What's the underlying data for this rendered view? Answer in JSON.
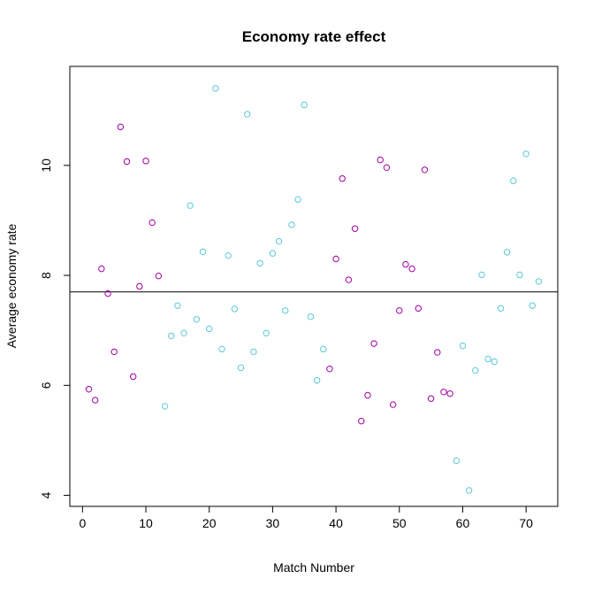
{
  "chart_data": {
    "type": "scatter",
    "title": "Economy rate effect",
    "xlabel": "Match Number",
    "ylabel": "Average economy rate",
    "xlim": [
      -2,
      75
    ],
    "ylim": [
      3.8,
      11.8
    ],
    "xticks": [
      0,
      10,
      20,
      30,
      40,
      50,
      60,
      70
    ],
    "yticks": [
      4,
      6,
      8,
      10
    ],
    "reference_line_y": 7.7,
    "grid": false,
    "legend": "none",
    "colors": {
      "magenta": "#a000a0",
      "cyan": "#5bc8d8",
      "line": "#000000"
    },
    "points": [
      {
        "x": 1,
        "y": 5.93,
        "c": "magenta"
      },
      {
        "x": 2,
        "y": 5.73,
        "c": "magenta"
      },
      {
        "x": 3,
        "y": 8.12,
        "c": "magenta"
      },
      {
        "x": 4,
        "y": 7.67,
        "c": "magenta"
      },
      {
        "x": 5,
        "y": 6.61,
        "c": "magenta"
      },
      {
        "x": 6,
        "y": 10.7,
        "c": "magenta"
      },
      {
        "x": 7,
        "y": 10.07,
        "c": "magenta"
      },
      {
        "x": 8,
        "y": 6.16,
        "c": "magenta"
      },
      {
        "x": 9,
        "y": 7.8,
        "c": "magenta"
      },
      {
        "x": 10,
        "y": 10.08,
        "c": "magenta"
      },
      {
        "x": 11,
        "y": 8.96,
        "c": "magenta"
      },
      {
        "x": 12,
        "y": 7.99,
        "c": "magenta"
      },
      {
        "x": 13,
        "y": 5.62,
        "c": "cyan"
      },
      {
        "x": 14,
        "y": 6.9,
        "c": "cyan"
      },
      {
        "x": 15,
        "y": 7.45,
        "c": "cyan"
      },
      {
        "x": 16,
        "y": 6.95,
        "c": "cyan"
      },
      {
        "x": 17,
        "y": 9.27,
        "c": "cyan"
      },
      {
        "x": 18,
        "y": 7.2,
        "c": "cyan"
      },
      {
        "x": 19,
        "y": 8.43,
        "c": "cyan"
      },
      {
        "x": 20,
        "y": 7.03,
        "c": "cyan"
      },
      {
        "x": 21,
        "y": 11.4,
        "c": "cyan"
      },
      {
        "x": 22,
        "y": 6.66,
        "c": "cyan"
      },
      {
        "x": 23,
        "y": 8.36,
        "c": "cyan"
      },
      {
        "x": 24,
        "y": 7.39,
        "c": "cyan"
      },
      {
        "x": 25,
        "y": 6.32,
        "c": "cyan"
      },
      {
        "x": 26,
        "y": 10.93,
        "c": "cyan"
      },
      {
        "x": 27,
        "y": 6.61,
        "c": "cyan"
      },
      {
        "x": 28,
        "y": 8.22,
        "c": "cyan"
      },
      {
        "x": 29,
        "y": 6.95,
        "c": "cyan"
      },
      {
        "x": 30,
        "y": 8.4,
        "c": "cyan"
      },
      {
        "x": 31,
        "y": 8.62,
        "c": "cyan"
      },
      {
        "x": 32,
        "y": 7.36,
        "c": "cyan"
      },
      {
        "x": 33,
        "y": 8.92,
        "c": "cyan"
      },
      {
        "x": 34,
        "y": 9.38,
        "c": "cyan"
      },
      {
        "x": 35,
        "y": 11.1,
        "c": "cyan"
      },
      {
        "x": 36,
        "y": 7.25,
        "c": "cyan"
      },
      {
        "x": 37,
        "y": 6.09,
        "c": "cyan"
      },
      {
        "x": 38,
        "y": 6.66,
        "c": "cyan"
      },
      {
        "x": 39,
        "y": 6.3,
        "c": "magenta"
      },
      {
        "x": 40,
        "y": 8.3,
        "c": "magenta"
      },
      {
        "x": 41,
        "y": 9.76,
        "c": "magenta"
      },
      {
        "x": 42,
        "y": 7.92,
        "c": "magenta"
      },
      {
        "x": 43,
        "y": 8.85,
        "c": "magenta"
      },
      {
        "x": 44,
        "y": 5.35,
        "c": "magenta"
      },
      {
        "x": 45,
        "y": 5.82,
        "c": "magenta"
      },
      {
        "x": 46,
        "y": 6.76,
        "c": "magenta"
      },
      {
        "x": 47,
        "y": 10.1,
        "c": "magenta"
      },
      {
        "x": 48,
        "y": 9.96,
        "c": "magenta"
      },
      {
        "x": 49,
        "y": 5.65,
        "c": "magenta"
      },
      {
        "x": 50,
        "y": 7.36,
        "c": "magenta"
      },
      {
        "x": 51,
        "y": 8.2,
        "c": "magenta"
      },
      {
        "x": 52,
        "y": 8.12,
        "c": "magenta"
      },
      {
        "x": 53,
        "y": 7.4,
        "c": "magenta"
      },
      {
        "x": 54,
        "y": 9.92,
        "c": "magenta"
      },
      {
        "x": 55,
        "y": 5.76,
        "c": "magenta"
      },
      {
        "x": 56,
        "y": 6.6,
        "c": "magenta"
      },
      {
        "x": 57,
        "y": 5.88,
        "c": "magenta"
      },
      {
        "x": 58,
        "y": 5.85,
        "c": "magenta"
      },
      {
        "x": 59,
        "y": 4.63,
        "c": "cyan"
      },
      {
        "x": 60,
        "y": 6.72,
        "c": "cyan"
      },
      {
        "x": 61,
        "y": 4.09,
        "c": "cyan"
      },
      {
        "x": 62,
        "y": 6.27,
        "c": "cyan"
      },
      {
        "x": 63,
        "y": 8.01,
        "c": "cyan"
      },
      {
        "x": 64,
        "y": 6.48,
        "c": "cyan"
      },
      {
        "x": 65,
        "y": 6.43,
        "c": "cyan"
      },
      {
        "x": 66,
        "y": 7.4,
        "c": "cyan"
      },
      {
        "x": 67,
        "y": 8.42,
        "c": "cyan"
      },
      {
        "x": 68,
        "y": 9.72,
        "c": "cyan"
      },
      {
        "x": 69,
        "y": 8.01,
        "c": "cyan"
      },
      {
        "x": 70,
        "y": 10.21,
        "c": "cyan"
      },
      {
        "x": 71,
        "y": 7.45,
        "c": "cyan"
      },
      {
        "x": 72,
        "y": 7.89,
        "c": "cyan"
      }
    ]
  }
}
